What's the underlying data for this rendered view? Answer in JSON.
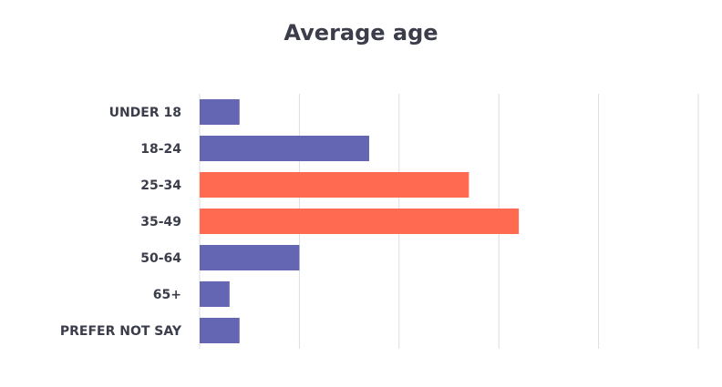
{
  "chart_data": {
    "type": "bar",
    "orientation": "horizontal",
    "title": "Average age",
    "categories": [
      "UNDER 18",
      "18-24",
      "25-34",
      "35-49",
      "50-64",
      "65+",
      "PREFER NOT SAY"
    ],
    "values": [
      4,
      17,
      27,
      32,
      10,
      3,
      4
    ],
    "highlight": [
      false,
      false,
      true,
      true,
      false,
      false,
      false
    ],
    "xlim": [
      0,
      50
    ],
    "grid": true,
    "colors": {
      "default": "#6466b3",
      "highlight": "#ff6a50",
      "grid": "#dddddd"
    }
  }
}
